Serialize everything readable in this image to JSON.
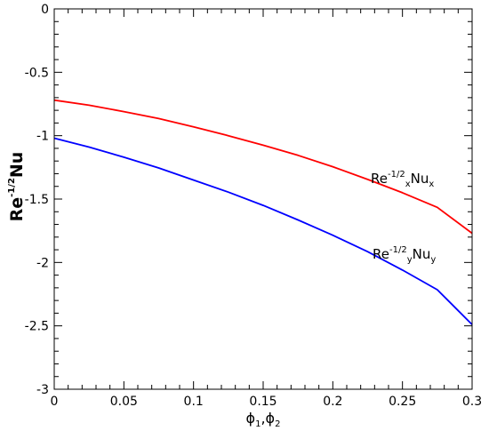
{
  "chart_data": {
    "type": "line",
    "title": "",
    "xlabel": {
      "base": "ϕ",
      "sub1": "1",
      "sep": ",",
      "sub2": "2"
    },
    "ylabel": {
      "prefix": "Re",
      "sup": "-1/2",
      "suffix": "Nu"
    },
    "xlim": [
      0,
      0.3
    ],
    "ylim": [
      -3,
      0
    ],
    "x_ticks": [
      0,
      0.05,
      0.1,
      0.15,
      0.2,
      0.25,
      0.3
    ],
    "x_tick_labels": [
      "0",
      "0.05",
      "0.1",
      "0.15",
      "0.2",
      "0.25",
      "0.3"
    ],
    "y_ticks": [
      0,
      -0.5,
      -1,
      -1.5,
      -2,
      -2.5,
      -3
    ],
    "y_tick_labels": [
      "0",
      "-0.5",
      "-1",
      "-1.5",
      "-2",
      "-2.5",
      "-3"
    ],
    "grid": false,
    "series": [
      {
        "color": "#ff0000",
        "label": {
          "pre": "Re",
          "sup": "-1/2",
          "sub1": "x",
          "mid": "Nu",
          "sub2": "x"
        },
        "x": [
          0,
          0.025,
          0.05,
          0.075,
          0.1,
          0.125,
          0.15,
          0.175,
          0.2,
          0.225,
          0.25,
          0.275,
          0.3
        ],
        "y": [
          -0.72,
          -0.76,
          -0.81,
          -0.865,
          -0.93,
          -1.0,
          -1.075,
          -1.155,
          -1.245,
          -1.345,
          -1.45,
          -1.565,
          -1.77
        ]
      },
      {
        "color": "#0000ff",
        "label": {
          "pre": "Re",
          "sup": "-1/2",
          "sub1": "y",
          "mid": "Nu",
          "sub2": "y"
        },
        "x": [
          0,
          0.025,
          0.05,
          0.075,
          0.1,
          0.125,
          0.15,
          0.175,
          0.2,
          0.225,
          0.25,
          0.275,
          0.3
        ],
        "y": [
          -1.02,
          -1.09,
          -1.17,
          -1.255,
          -1.35,
          -1.445,
          -1.55,
          -1.665,
          -1.785,
          -1.915,
          -2.06,
          -2.215,
          -2.49
        ]
      }
    ]
  }
}
